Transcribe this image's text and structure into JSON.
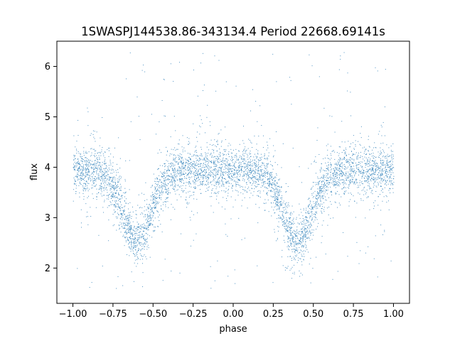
{
  "chart_data": {
    "type": "scatter",
    "title": "1SWASPJ144538.86-343134.4 Period 22668.69141s",
    "xlabel": "phase",
    "ylabel": "flux",
    "xlim": [
      -1.1,
      1.1
    ],
    "ylim": [
      1.3,
      6.5
    ],
    "x_ticks": [
      -1.0,
      -0.75,
      -0.5,
      -0.25,
      0.0,
      0.25,
      0.5,
      0.75,
      1.0
    ],
    "x_tick_labels": [
      "−1.00",
      "−0.75",
      "−0.50",
      "−0.25",
      "0.00",
      "0.25",
      "0.50",
      "0.75",
      "1.00"
    ],
    "y_ticks": [
      2,
      3,
      4,
      5,
      6
    ],
    "y_tick_labels": [
      "2",
      "3",
      "4",
      "5",
      "6"
    ],
    "grid": false,
    "legend": "none",
    "marker_color": "#1f77b4",
    "marker": "tiny dots",
    "data_range_x": [
      -1.0,
      1.0
    ],
    "baseline_flux": 3.95,
    "baseline_scatter_sd": 0.22,
    "outlier_flux_range": [
      1.6,
      6.3
    ],
    "dips": [
      {
        "center_phase": -0.6,
        "min_flux": 2.3
      },
      {
        "center_phase": 0.4,
        "min_flux": 2.3
      }
    ]
  }
}
